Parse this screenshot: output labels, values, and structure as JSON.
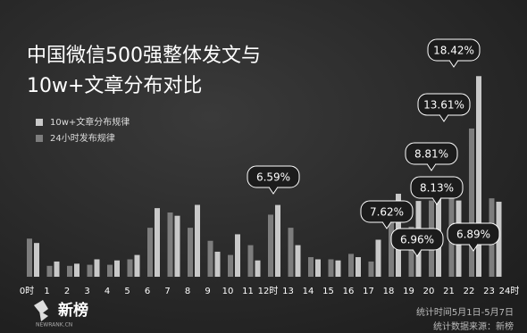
{
  "chart_data": {
    "type": "bar",
    "title": [
      "中国微信500强整体发文与",
      "10w+文章分布对比"
    ],
    "categories": [
      "0时",
      "1",
      "2",
      "3",
      "4",
      "5",
      "6",
      "7",
      "8",
      "9",
      "10",
      "11",
      "12时",
      "13",
      "14",
      "15",
      "16",
      "17",
      "18",
      "19",
      "20",
      "21",
      "22",
      "23",
      "24时"
    ],
    "series": [
      {
        "name": "10w+文章分布规律",
        "color": "#c9c9c9",
        "values": [
          3.1,
          1.4,
          1.2,
          1.6,
          1.5,
          2.0,
          6.3,
          5.6,
          6.6,
          2.3,
          3.9,
          1.5,
          6.59,
          2.9,
          1.6,
          1.5,
          1.8,
          3.4,
          7.62,
          6.96,
          8.81,
          7.0,
          18.42,
          6.89,
          null
        ],
        "value_labels": [
          null,
          null,
          null,
          null,
          null,
          null,
          null,
          null,
          null,
          null,
          null,
          null,
          "6.59%",
          null,
          null,
          null,
          null,
          null,
          "7.62%",
          "6.96%",
          "8.81%",
          null,
          "18.42%",
          "6.89%",
          null
        ]
      },
      {
        "name": "24小时发布规律",
        "color": "#7d7d7d",
        "values": [
          3.5,
          1.0,
          1.0,
          1.1,
          1.1,
          1.6,
          4.5,
          5.9,
          4.5,
          3.3,
          2.0,
          2.9,
          5.7,
          4.5,
          1.8,
          1.6,
          2.1,
          1.4,
          5.4,
          4.6,
          7.0,
          8.13,
          13.61,
          7.2,
          null
        ],
        "value_labels": [
          null,
          null,
          null,
          null,
          null,
          null,
          null,
          null,
          null,
          null,
          null,
          null,
          null,
          null,
          null,
          null,
          null,
          null,
          null,
          null,
          null,
          "8.13%",
          "13.61%",
          null,
          null
        ]
      }
    ],
    "ylim": [
      0,
      20
    ],
    "legend": "top-left"
  },
  "source": [
    "统计时间5月1日-5月7日",
    "统计数据来源：新榜"
  ],
  "logo": {
    "name": "新榜",
    "site": "NEWRANK.CN"
  }
}
